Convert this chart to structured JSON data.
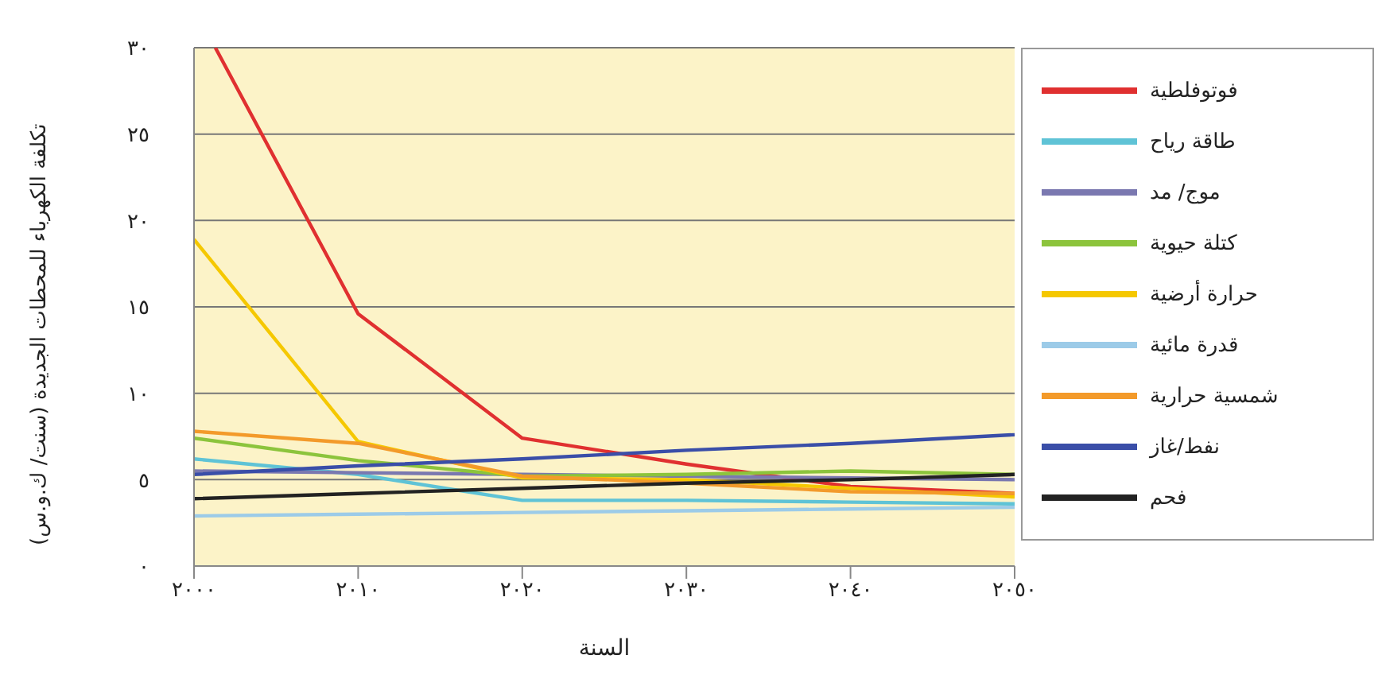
{
  "chart_data": {
    "type": "line",
    "xlabel": "السنة",
    "ylabel": "تكلفة الكهرباء للمحطات الجديدة (سنت/ ك.و.س)",
    "x": [
      2000,
      2010,
      2020,
      2030,
      2040,
      2050
    ],
    "series": [
      {
        "name": "فوتوفلطية",
        "color": "#e03030",
        "x": [
          2001.3,
          2010,
          2020,
          2030,
          2040,
          2050
        ],
        "values": [
          30,
          14.6,
          7.4,
          5.9,
          4.6,
          4.2
        ]
      },
      {
        "name": "طاقة رياح",
        "color": "#5fc3d6",
        "values": [
          6.2,
          5.3,
          3.8,
          3.8,
          3.7,
          3.6
        ]
      },
      {
        "name": "موج/ مد",
        "color": "#7a78b0",
        "values": [
          5.5,
          5.4,
          5.3,
          5.2,
          5.1,
          5.0
        ]
      },
      {
        "name": "كتلة حيوية",
        "color": "#8cc43c",
        "values": [
          7.4,
          6.1,
          5.2,
          5.3,
          5.5,
          5.3
        ]
      },
      {
        "name": "حرارة أرضية",
        "color": "#f5c800",
        "values": [
          18.9,
          7.2,
          5.1,
          5.0,
          4.5,
          4.0
        ]
      },
      {
        "name": "قدرة مائية",
        "color": "#9ccbe8",
        "values": [
          2.9,
          3.0,
          3.1,
          3.2,
          3.3,
          3.4
        ]
      },
      {
        "name": "شمسية حرارية",
        "color": "#f39a2a",
        "values": [
          7.8,
          7.1,
          5.2,
          4.8,
          4.3,
          4.2
        ]
      },
      {
        "name": "نفط/غاز",
        "color": "#3a4ea8",
        "values": [
          5.3,
          5.8,
          6.2,
          6.7,
          7.1,
          7.6
        ]
      },
      {
        "name": "فحم",
        "color": "#222222",
        "values": [
          3.9,
          4.2,
          4.5,
          4.8,
          5.0,
          5.3
        ]
      }
    ],
    "xlim": [
      2000,
      2050
    ],
    "xticks": [
      {
        "value": 2000,
        "label": "٢٠٠٠"
      },
      {
        "value": 2010,
        "label": "٢٠١٠"
      },
      {
        "value": 2020,
        "label": "٢٠٢٠"
      },
      {
        "value": 2030,
        "label": "٢٠٣٠"
      },
      {
        "value": 2040,
        "label": "٢٠٤٠"
      },
      {
        "value": 2050,
        "label": "٢٠٥٠"
      }
    ],
    "ylim": [
      0,
      30
    ],
    "yticks": [
      {
        "value": 0,
        "label": "٠"
      },
      {
        "value": 5,
        "label": "٥"
      },
      {
        "value": 10,
        "label": "١٠"
      },
      {
        "value": 15,
        "label": "١٥"
      },
      {
        "value": 20,
        "label": "٢٠"
      },
      {
        "value": 25,
        "label": "٢٥"
      },
      {
        "value": 30,
        "label": "٣٠"
      }
    ],
    "grid": "y",
    "legend": "right",
    "marker": "none",
    "line_style": "solid"
  }
}
